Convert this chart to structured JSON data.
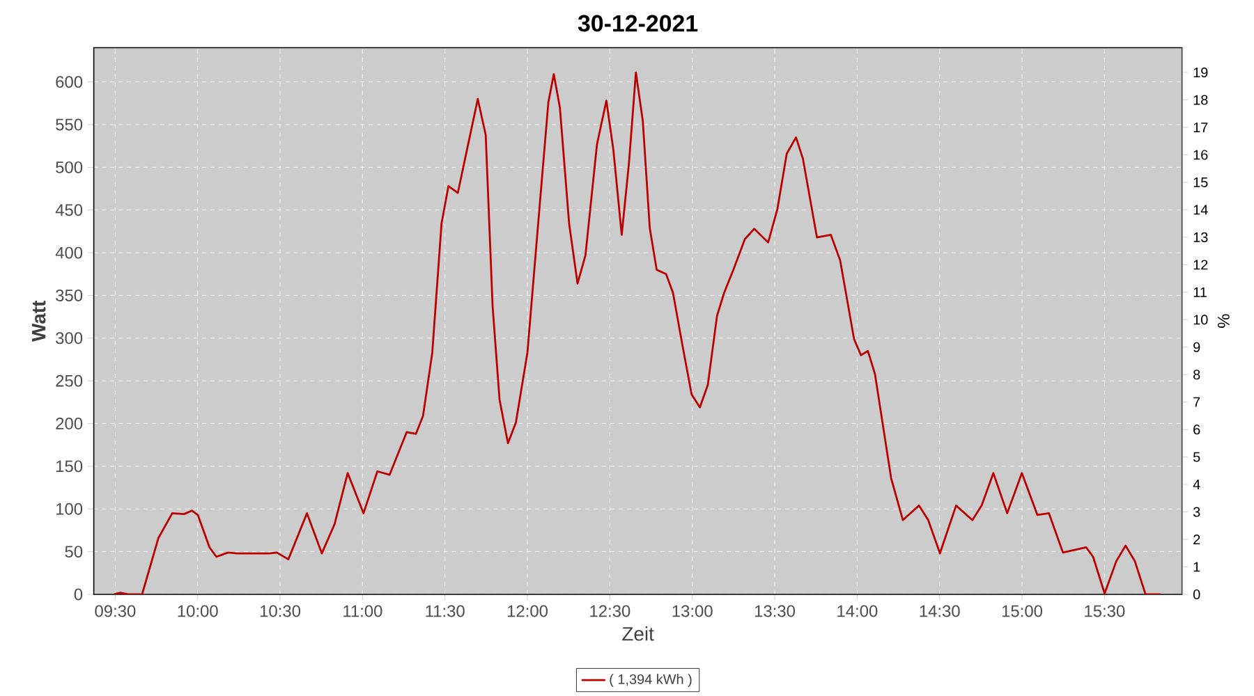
{
  "chart_data": {
    "type": "line",
    "title": "30-12-2021",
    "xlabel": "Zeit",
    "ylabel": "Watt",
    "y2label": "%",
    "x": [
      9.494,
      9.531,
      9.579,
      9.663,
      9.762,
      9.846,
      9.917,
      9.965,
      10.001,
      10.072,
      10.114,
      10.184,
      10.24,
      10.437,
      10.48,
      10.55,
      10.663,
      10.753,
      10.83,
      10.91,
      11.006,
      11.09,
      11.164,
      11.268,
      11.324,
      11.367,
      11.423,
      11.479,
      11.521,
      11.578,
      11.634,
      11.699,
      11.747,
      11.789,
      11.831,
      11.882,
      11.93,
      12.0,
      12.07,
      12.127,
      12.16,
      12.197,
      12.253,
      12.304,
      12.352,
      12.422,
      12.479,
      12.521,
      12.572,
      12.616,
      12.658,
      12.7,
      12.742,
      12.784,
      12.841,
      12.883,
      12.939,
      12.996,
      13.046,
      13.094,
      13.15,
      13.193,
      13.249,
      13.319,
      13.376,
      13.46,
      13.516,
      13.573,
      13.629,
      13.671,
      13.756,
      13.84,
      13.897,
      13.981,
      14.023,
      14.065,
      14.108,
      14.206,
      14.277,
      14.375,
      14.431,
      14.502,
      14.6,
      14.699,
      14.755,
      14.826,
      14.91,
      14.999,
      15.093,
      15.163,
      15.248,
      15.389,
      15.431,
      15.501,
      15.572,
      15.628,
      15.684,
      15.749,
      15.839
    ],
    "series": [
      {
        "name": "( 1,394 kWh )",
        "color": "#bb0000",
        "values": [
          0,
          2,
          0,
          0,
          66,
          95,
          94,
          98,
          93,
          55,
          44,
          49,
          48,
          48,
          49,
          41,
          95,
          48,
          82,
          142,
          95,
          144,
          140,
          190,
          188,
          209,
          283,
          434,
          478,
          470,
          521,
          580,
          538,
          337,
          228,
          177,
          201,
          283,
          445,
          576,
          609,
          570,
          434,
          364,
          397,
          527,
          578,
          521,
          421,
          505,
          611,
          554,
          429,
          380,
          375,
          353,
          293,
          234,
          219,
          245,
          326,
          353,
          380,
          416,
          428,
          412,
          451,
          516,
          535,
          510,
          418,
          421,
          391,
          299,
          280,
          285,
          258,
          136,
          87,
          104,
          87,
          48,
          104,
          87,
          104,
          142,
          95,
          142,
          93,
          95,
          49,
          55,
          44,
          1,
          39,
          57,
          39,
          0,
          0
        ]
      }
    ],
    "xlim": [
      9.37,
      15.97
    ],
    "ylim": [
      0,
      640
    ],
    "y2lim": [
      0,
      19.9
    ],
    "xticks": [
      {
        "value": 9.5,
        "label": "09:30"
      },
      {
        "value": 10.0,
        "label": "10:00"
      },
      {
        "value": 10.5,
        "label": "10:30"
      },
      {
        "value": 11.0,
        "label": "11:00"
      },
      {
        "value": 11.5,
        "label": "11:30"
      },
      {
        "value": 12.0,
        "label": "12:00"
      },
      {
        "value": 12.5,
        "label": "12:30"
      },
      {
        "value": 13.0,
        "label": "13:00"
      },
      {
        "value": 13.5,
        "label": "13:30"
      },
      {
        "value": 14.0,
        "label": "14:00"
      },
      {
        "value": 14.5,
        "label": "14:30"
      },
      {
        "value": 15.0,
        "label": "15:00"
      },
      {
        "value": 15.5,
        "label": "15:30"
      }
    ],
    "yticks": [
      0,
      50,
      100,
      150,
      200,
      250,
      300,
      350,
      400,
      450,
      500,
      550,
      600
    ],
    "y2ticks": [
      0,
      1,
      2,
      3,
      4,
      5,
      6,
      7,
      8,
      9,
      10,
      11,
      12,
      13,
      14,
      15,
      16,
      17,
      18,
      19
    ],
    "grid": true,
    "legend": "bottom"
  }
}
